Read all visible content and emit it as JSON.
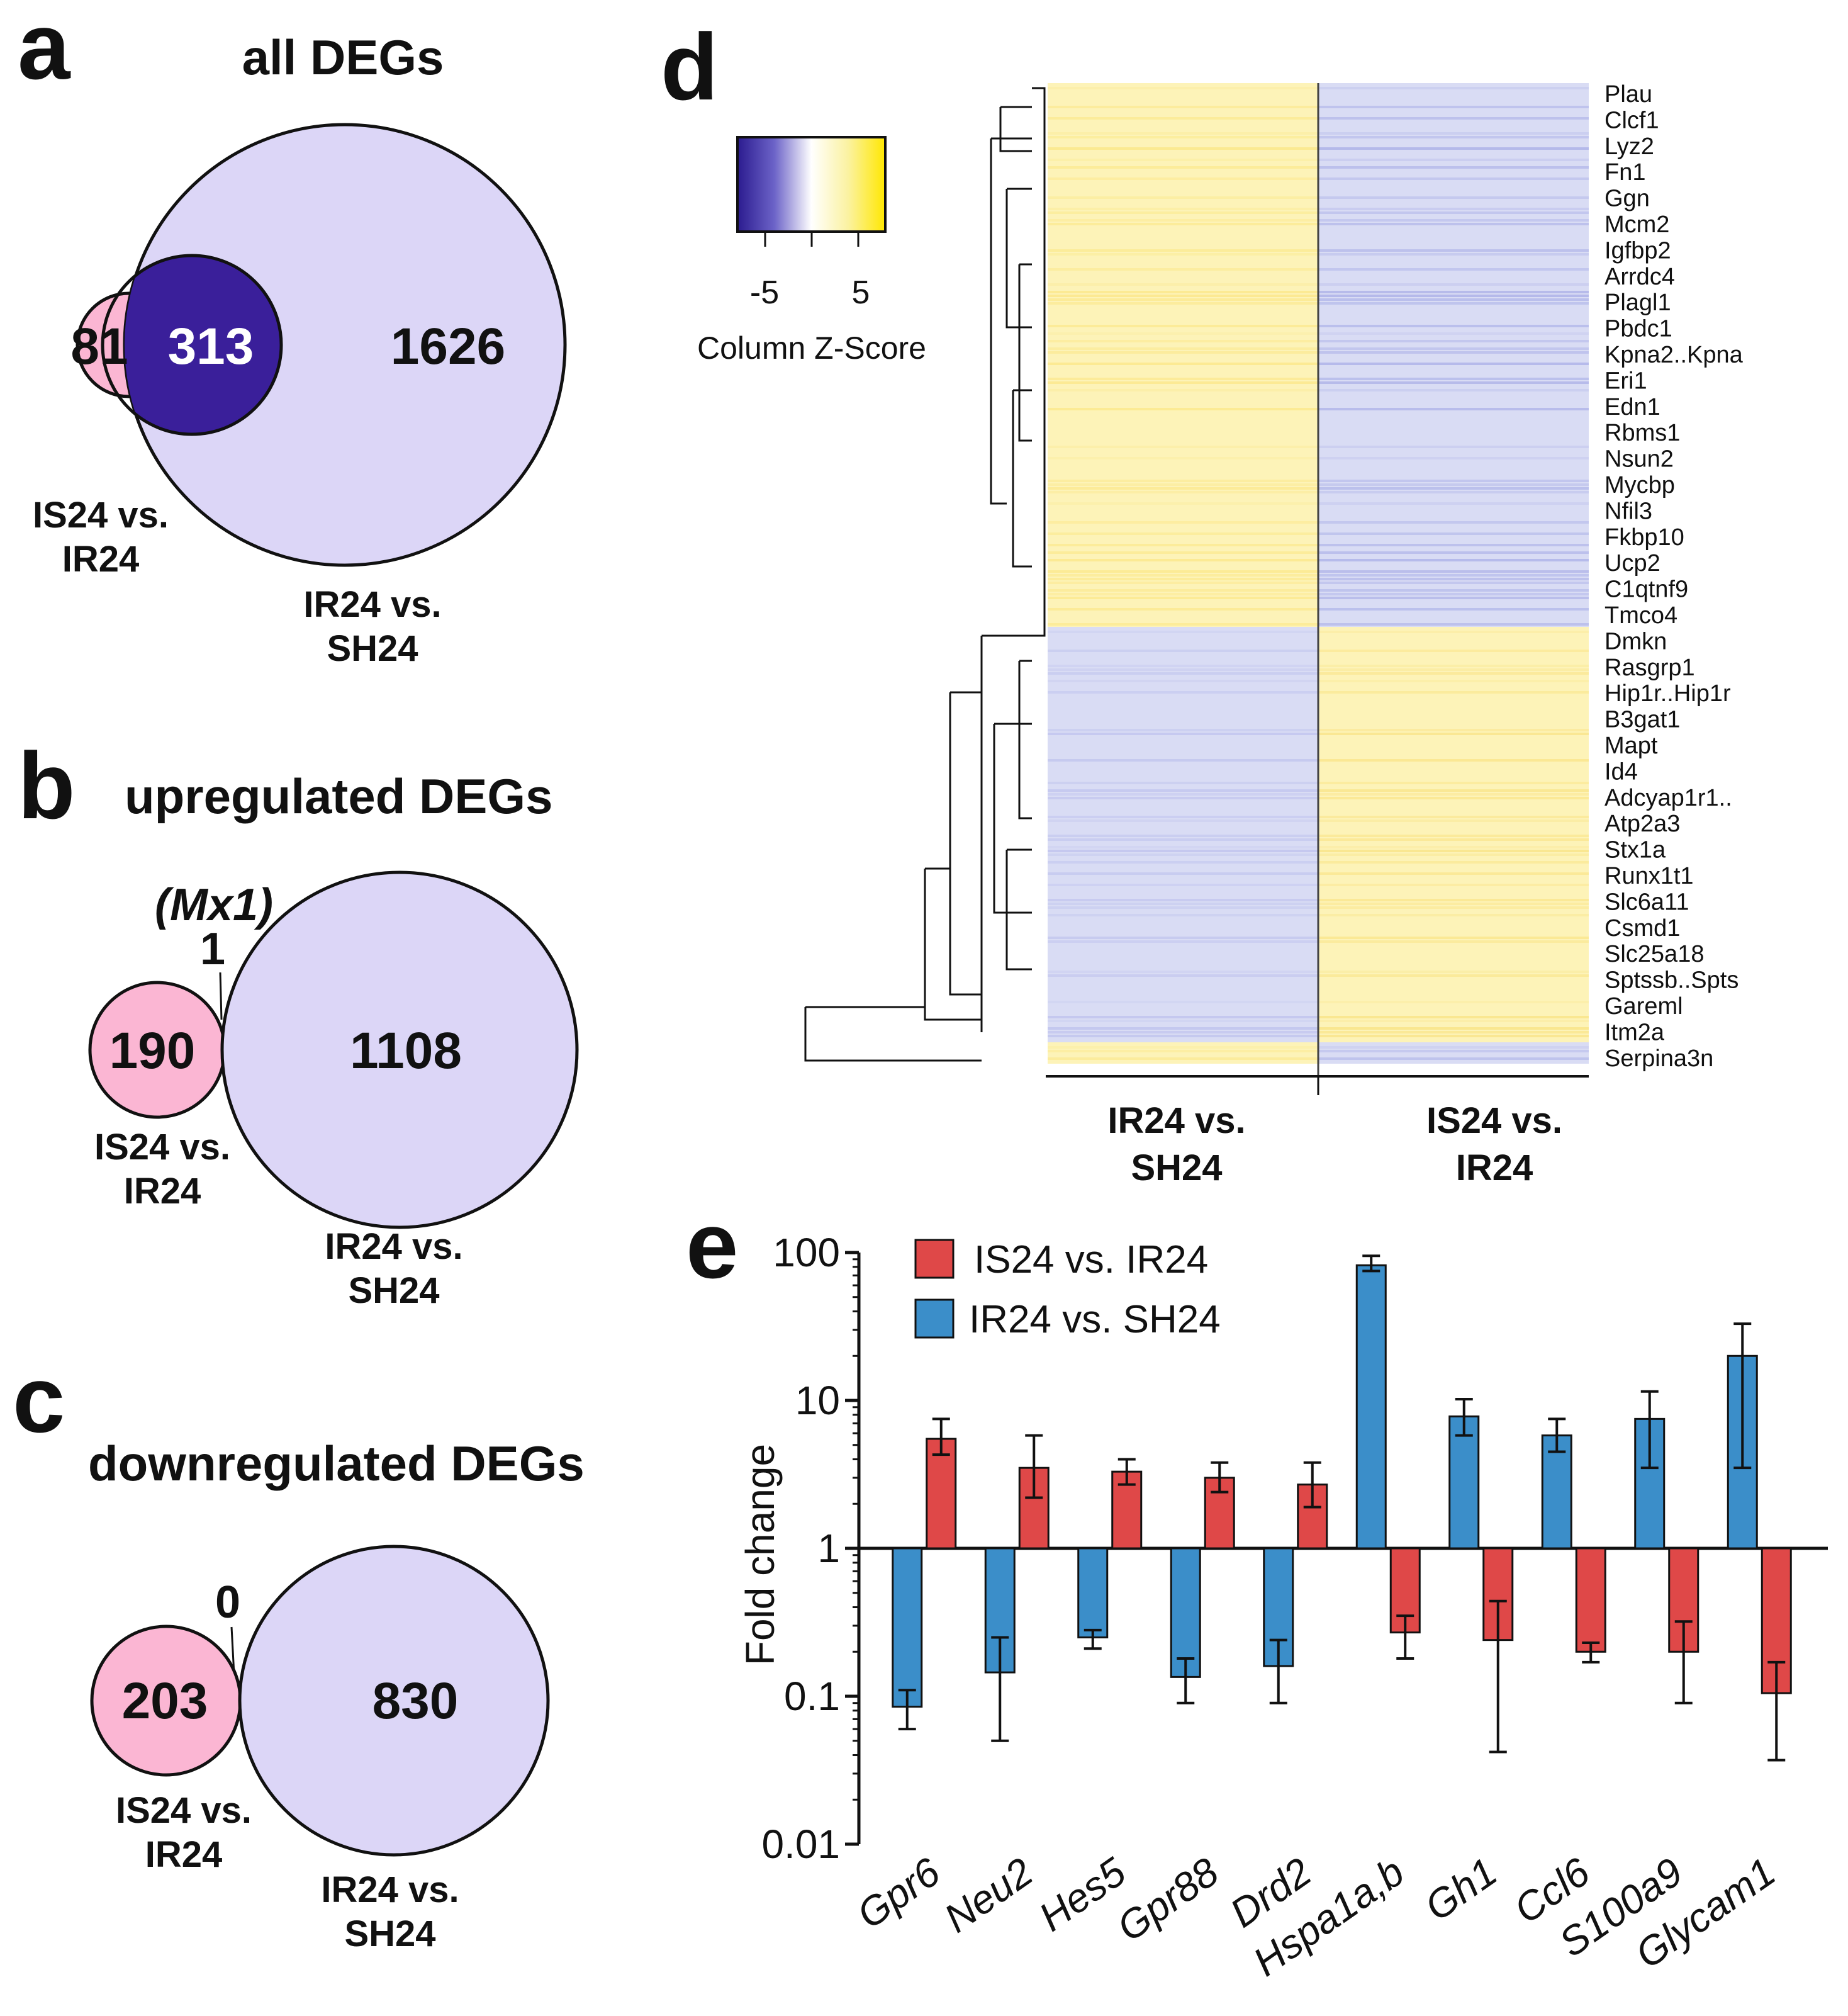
{
  "colors": {
    "pink": "#fbb6d3",
    "lavender": "#dcd6f7",
    "overlap": "#3a1f9a",
    "red_bar": "#df4848",
    "blue_bar": "#3b8ec9",
    "heat_yellow": "#fdf3b8",
    "heat_blue": "#d9dcf4"
  },
  "panel_a": {
    "letter": "a",
    "title": "all DEGs",
    "left_only": "81",
    "overlap": "313",
    "right_only": "1626",
    "left_label_1": "IS24 vs.",
    "left_label_2": "IR24",
    "right_label_1": "IR24 vs.",
    "right_label_2": "SH24"
  },
  "panel_b": {
    "letter": "b",
    "title": "upregulated DEGs",
    "shared_gene": "(Mx1)",
    "shared_count": "1",
    "left_only": "190",
    "right_only": "1108",
    "left_label_1": "IS24 vs.",
    "left_label_2": "IR24",
    "right_label_1": "IR24 vs.",
    "right_label_2": "SH24"
  },
  "panel_c": {
    "letter": "c",
    "title": "downregulated DEGs",
    "shared_count": "0",
    "left_only": "203",
    "right_only": "830",
    "left_label_1": "IS24 vs.",
    "left_label_2": "IR24",
    "right_label_1": "IR24 vs.",
    "right_label_2": "SH24"
  },
  "panel_d": {
    "letter": "d",
    "scale_ticks": [
      "-5",
      "5"
    ],
    "scale_label": "Column Z-Score",
    "col1_label_1": "IR24 vs.",
    "col1_label_2": "SH24",
    "col2_label_1": "IS24 vs.",
    "col2_label_2": "IR24",
    "genes": [
      "Plau",
      "Clcf1",
      "Lyz2",
      "Fn1",
      "Ggn",
      "Mcm2",
      "Igfbp2",
      "Arrdc4",
      "Plagl1",
      "Pbdc1",
      "Kpna2..Kpna",
      "Eri1",
      "Edn1",
      "Rbms1",
      "Nsun2",
      "Mycbp",
      "Nfil3",
      "Fkbp10",
      "Ucp2",
      "C1qtnf9",
      "Tmco4",
      "Dmkn",
      "Rasgrp1",
      "Hip1r..Hip1r",
      "B3gat1",
      "Mapt",
      "Id4",
      "Adcyap1r1..",
      "Atp2a3",
      "Stx1a",
      "Runx1t1",
      "Slc6a11",
      "Csmd1",
      "Slc25a18",
      "Sptssb..Spts",
      "Gareml",
      "Itm2a",
      "Serpina3n"
    ]
  },
  "chart_data": [
    {
      "panel": "e",
      "type": "bar",
      "scale": "log10",
      "ylabel": "Fold change",
      "ylim": [
        0.01,
        100
      ],
      "yticks": [
        "0.01",
        "0.1",
        "1",
        "10",
        "100"
      ],
      "categories": [
        "Gpr6",
        "Neu2",
        "Hes5",
        "Gpr88",
        "Drd2",
        "Hspa1a,b",
        "Gh1",
        "Ccl6",
        "S100a9",
        "Glycam1"
      ],
      "series": [
        {
          "name": "IR24 vs. SH24",
          "color": "#3b8ec9",
          "values": [
            0.085,
            0.145,
            0.25,
            0.135,
            0.16,
            82,
            7.8,
            5.8,
            7.5,
            20
          ],
          "err_low": [
            0.06,
            0.05,
            0.21,
            0.09,
            0.09,
            75,
            5.8,
            4.5,
            3.5,
            3.5
          ],
          "err_high": [
            0.11,
            0.25,
            0.28,
            0.18,
            0.24,
            95,
            10.2,
            7.5,
            11.5,
            33
          ]
        },
        {
          "name": "IS24 vs. IR24",
          "color": "#df4848",
          "values": [
            5.5,
            3.5,
            3.3,
            3.0,
            2.7,
            0.27,
            0.24,
            0.2,
            0.2,
            0.105
          ],
          "err_low": [
            4.3,
            2.2,
            2.7,
            2.4,
            1.9,
            0.18,
            0.042,
            0.17,
            0.09,
            0.037
          ],
          "err_high": [
            7.5,
            5.8,
            4.0,
            3.8,
            3.8,
            0.35,
            0.44,
            0.23,
            0.32,
            0.17
          ]
        }
      ],
      "legend": [
        "IS24 vs. IR24",
        "IR24 vs. SH24"
      ]
    }
  ]
}
